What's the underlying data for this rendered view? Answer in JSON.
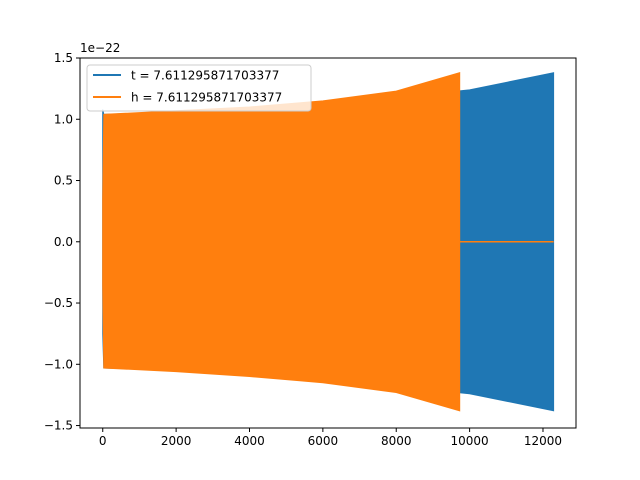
{
  "chart_data": {
    "type": "line",
    "title": "",
    "xlabel": "",
    "ylabel": "",
    "xlim": [
      -620,
      12900
    ],
    "ylim": [
      -1.52,
      1.5
    ],
    "y_scale_label": "1e−22",
    "x_ticks": [
      0,
      2000,
      4000,
      6000,
      8000,
      10000,
      12000
    ],
    "x_tick_labels": [
      "0",
      "2000",
      "4000",
      "6000",
      "8000",
      "10000",
      "12000"
    ],
    "y_ticks": [
      -1.5,
      -1.0,
      -0.5,
      0.0,
      0.5,
      1.0,
      1.5
    ],
    "y_tick_labels": [
      "−1.5",
      "−1.0",
      "−0.5",
      "0.0",
      "0.5",
      "1.0",
      "1.5"
    ],
    "grid": false,
    "legend_position": "top-left",
    "series": [
      {
        "name": "t = 7.611295871703377",
        "color": "#1f77b4",
        "x_range": [
          0,
          12290
        ],
        "envelope": [
          {
            "x": 0,
            "upper": 1.08,
            "lower": -0.75
          },
          {
            "x": 30,
            "upper": 1.04,
            "lower": -1.03
          },
          {
            "x": 2000,
            "upper": 1.06,
            "lower": -1.05
          },
          {
            "x": 4000,
            "upper": 1.09,
            "lower": -1.09
          },
          {
            "x": 6000,
            "upper": 1.13,
            "lower": -1.13
          },
          {
            "x": 8000,
            "upper": 1.18,
            "lower": -1.18
          },
          {
            "x": 10000,
            "upper": 1.24,
            "lower": -1.24
          },
          {
            "x": 12290,
            "upper": 1.38,
            "lower": -1.38
          }
        ]
      },
      {
        "name": "h = 7.611295871703377",
        "color": "#ff7f0e",
        "x_range": [
          0,
          12290
        ],
        "nonzero_until": 9730,
        "envelope": [
          {
            "x": 0,
            "upper": 0.35,
            "lower": -0.35
          },
          {
            "x": 30,
            "upper": 1.04,
            "lower": -1.03
          },
          {
            "x": 2000,
            "upper": 1.07,
            "lower": -1.06
          },
          {
            "x": 4000,
            "upper": 1.1,
            "lower": -1.1
          },
          {
            "x": 6000,
            "upper": 1.15,
            "lower": -1.15
          },
          {
            "x": 8000,
            "upper": 1.23,
            "lower": -1.23
          },
          {
            "x": 9730,
            "upper": 1.38,
            "lower": -1.38
          }
        ]
      }
    ]
  }
}
